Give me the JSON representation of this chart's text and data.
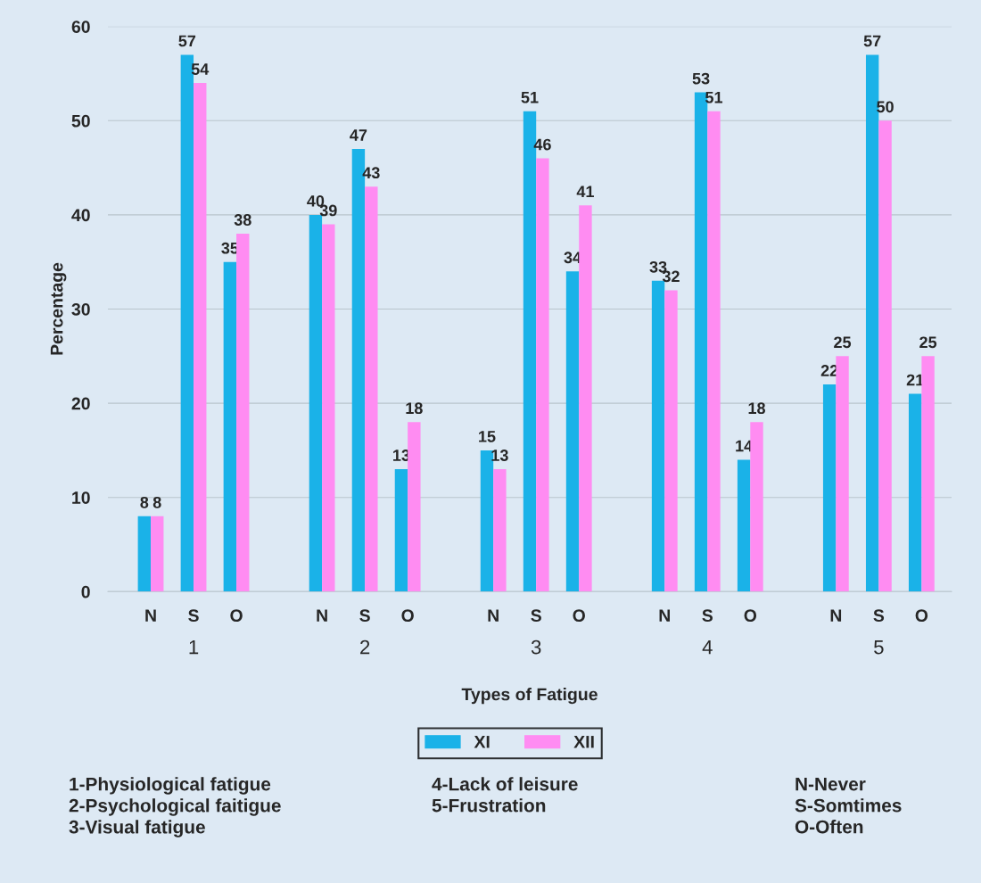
{
  "chart_data": {
    "type": "bar",
    "xlabel": "Types of Fatigue",
    "ylabel": "Percentage",
    "categories": [
      "N",
      "S",
      "O",
      "N",
      "S",
      "O",
      "N",
      "S",
      "O",
      "N",
      "S",
      "O",
      "N",
      "S",
      "O"
    ],
    "series": [
      {
        "name": "XI",
        "color": "#1ab2e8",
        "values": [
          8,
          57,
          35,
          40,
          47,
          13,
          15,
          51,
          34,
          33,
          53,
          14,
          22,
          57,
          21
        ]
      },
      {
        "name": "XII",
        "color": "#ff8cf2",
        "values": [
          8,
          54,
          38,
          39,
          43,
          18,
          13,
          46,
          41,
          32,
          51,
          18,
          25,
          50,
          25
        ]
      }
    ],
    "ylim": [
      0,
      60
    ],
    "yticks": [
      0,
      10,
      20,
      30,
      40,
      50,
      60
    ],
    "grid": "y",
    "legend": "bottom",
    "data_labels": true,
    "annotations": [
      "1",
      "2",
      "3",
      "4",
      "5",
      "1-Physiological fatigue\n2-Psychological faitigue\n3-Visual fatigue",
      "4-Lack of leisure\n5-Frustration",
      "N-Never\nS-Somtimes\nO-Often"
    ]
  }
}
